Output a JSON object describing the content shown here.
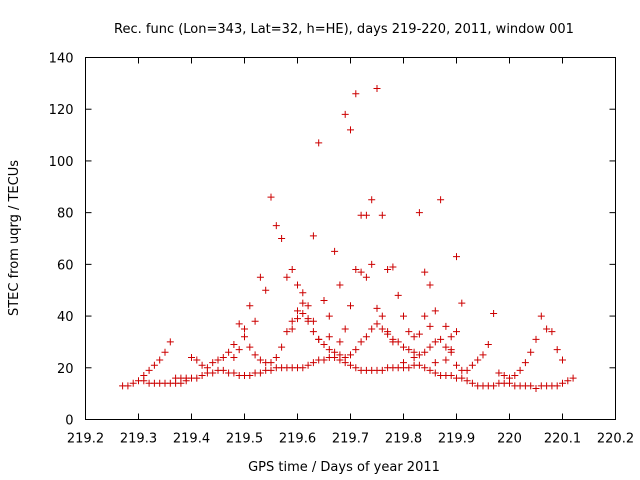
{
  "chart_data": {
    "type": "scatter",
    "title": "Rec. func (Lon=343, Lat=32, h=HE), days 219-220, 2011, window 001",
    "xlabel": "GPS time / Days of year 2011",
    "ylabel": "STEC from uqrg / TECUs",
    "xlim": [
      219.2,
      220.2
    ],
    "ylim": [
      0,
      140
    ],
    "xticks": [
      "219.2",
      "219.3",
      "219.4",
      "219.5",
      "219.6",
      "219.7",
      "219.8",
      "219.9",
      "220",
      "220.1",
      "220.2"
    ],
    "yticks": [
      "0",
      "20",
      "40",
      "60",
      "80",
      "100",
      "120",
      "140"
    ],
    "grid": false,
    "legend": "none",
    "marker": "plus",
    "color": "#cc0000",
    "series": [
      {
        "points": [
          [
            219.27,
            13
          ],
          [
            219.28,
            13
          ],
          [
            219.29,
            14
          ],
          [
            219.3,
            15
          ],
          [
            219.31,
            15
          ],
          [
            219.32,
            14
          ],
          [
            219.33,
            14
          ],
          [
            219.34,
            14
          ],
          [
            219.35,
            14
          ],
          [
            219.36,
            14
          ],
          [
            219.37,
            14
          ],
          [
            219.38,
            14
          ],
          [
            219.39,
            15
          ],
          [
            219.4,
            16
          ],
          [
            219.41,
            16
          ],
          [
            219.42,
            17
          ],
          [
            219.43,
            18
          ],
          [
            219.44,
            18
          ],
          [
            219.45,
            19
          ],
          [
            219.46,
            19
          ],
          [
            219.47,
            18
          ],
          [
            219.48,
            18
          ],
          [
            219.49,
            17
          ],
          [
            219.5,
            17
          ],
          [
            219.51,
            17
          ],
          [
            219.52,
            18
          ],
          [
            219.53,
            18
          ],
          [
            219.54,
            19
          ],
          [
            219.55,
            19
          ],
          [
            219.56,
            20
          ],
          [
            219.57,
            20
          ],
          [
            219.58,
            20
          ],
          [
            219.59,
            20
          ],
          [
            219.6,
            20
          ],
          [
            219.61,
            20
          ],
          [
            219.62,
            21
          ],
          [
            219.63,
            22
          ],
          [
            219.64,
            23
          ],
          [
            219.65,
            23
          ],
          [
            219.66,
            24
          ],
          [
            219.67,
            24
          ],
          [
            219.68,
            23
          ],
          [
            219.69,
            22
          ],
          [
            219.7,
            21
          ],
          [
            219.71,
            20
          ],
          [
            219.72,
            19
          ],
          [
            219.73,
            19
          ],
          [
            219.74,
            19
          ],
          [
            219.75,
            19
          ],
          [
            219.76,
            19
          ],
          [
            219.77,
            20
          ],
          [
            219.78,
            20
          ],
          [
            219.79,
            20
          ],
          [
            219.8,
            20
          ],
          [
            219.81,
            20
          ],
          [
            219.82,
            21
          ],
          [
            219.83,
            21
          ],
          [
            219.84,
            20
          ],
          [
            219.85,
            19
          ],
          [
            219.86,
            18
          ],
          [
            219.87,
            17
          ],
          [
            219.88,
            17
          ],
          [
            219.89,
            17
          ],
          [
            219.9,
            16
          ],
          [
            219.91,
            16
          ],
          [
            219.92,
            15
          ],
          [
            219.93,
            14
          ],
          [
            219.94,
            13
          ],
          [
            219.95,
            13
          ],
          [
            219.96,
            13
          ],
          [
            219.97,
            13
          ],
          [
            219.98,
            14
          ],
          [
            219.99,
            14
          ],
          [
            220.0,
            14
          ],
          [
            220.01,
            13
          ],
          [
            220.02,
            13
          ],
          [
            220.03,
            13
          ],
          [
            220.04,
            13
          ],
          [
            220.05,
            12
          ],
          [
            220.06,
            13
          ],
          [
            220.07,
            13
          ],
          [
            220.08,
            13
          ],
          [
            220.09,
            13
          ],
          [
            220.1,
            14
          ],
          [
            220.11,
            15
          ],
          [
            220.12,
            16
          ],
          [
            219.31,
            17
          ],
          [
            219.32,
            19
          ],
          [
            219.33,
            21
          ],
          [
            219.34,
            23
          ],
          [
            219.35,
            26
          ],
          [
            219.36,
            30
          ],
          [
            219.37,
            16
          ],
          [
            219.38,
            16
          ],
          [
            219.39,
            16
          ],
          [
            219.4,
            24
          ],
          [
            219.41,
            23
          ],
          [
            219.42,
            21
          ],
          [
            219.43,
            20
          ],
          [
            219.44,
            22
          ],
          [
            219.45,
            23
          ],
          [
            219.46,
            24
          ],
          [
            219.47,
            26
          ],
          [
            219.48,
            29
          ],
          [
            219.49,
            37
          ],
          [
            219.5,
            32
          ],
          [
            219.51,
            28
          ],
          [
            219.52,
            25
          ],
          [
            219.53,
            23
          ],
          [
            219.54,
            22
          ],
          [
            219.55,
            22
          ],
          [
            219.56,
            24
          ],
          [
            219.57,
            28
          ],
          [
            219.58,
            34
          ],
          [
            219.59,
            38
          ],
          [
            219.6,
            42
          ],
          [
            219.61,
            45
          ],
          [
            219.62,
            38
          ],
          [
            219.63,
            34
          ],
          [
            219.64,
            31
          ],
          [
            219.65,
            29
          ],
          [
            219.66,
            27
          ],
          [
            219.67,
            26
          ],
          [
            219.68,
            25
          ],
          [
            219.69,
            24
          ],
          [
            219.7,
            25
          ],
          [
            219.71,
            27
          ],
          [
            219.72,
            30
          ],
          [
            219.73,
            32
          ],
          [
            219.74,
            35
          ],
          [
            219.75,
            37
          ],
          [
            219.76,
            35
          ],
          [
            219.77,
            33
          ],
          [
            219.78,
            31
          ],
          [
            219.79,
            30
          ],
          [
            219.8,
            28
          ],
          [
            219.81,
            27
          ],
          [
            219.82,
            26
          ],
          [
            219.83,
            25
          ],
          [
            219.84,
            26
          ],
          [
            219.85,
            28
          ],
          [
            219.86,
            30
          ],
          [
            219.87,
            31
          ],
          [
            219.88,
            28
          ],
          [
            219.89,
            26
          ],
          [
            219.9,
            21
          ],
          [
            219.91,
            19
          ],
          [
            219.92,
            19
          ],
          [
            219.93,
            21
          ],
          [
            219.94,
            23
          ],
          [
            219.95,
            25
          ],
          [
            219.96,
            29
          ],
          [
            219.97,
            41
          ],
          [
            219.98,
            18
          ],
          [
            219.99,
            17
          ],
          [
            220.0,
            16
          ],
          [
            220.01,
            17
          ],
          [
            220.02,
            19
          ],
          [
            220.03,
            22
          ],
          [
            220.04,
            26
          ],
          [
            220.05,
            31
          ],
          [
            220.06,
            40
          ],
          [
            220.07,
            35
          ],
          [
            220.08,
            34
          ],
          [
            220.09,
            27
          ],
          [
            220.1,
            23
          ],
          [
            219.48,
            24
          ],
          [
            219.49,
            27
          ],
          [
            219.5,
            35
          ],
          [
            219.51,
            44
          ],
          [
            219.52,
            38
          ],
          [
            219.53,
            55
          ],
          [
            219.54,
            50
          ],
          [
            219.55,
            86
          ],
          [
            219.56,
            75
          ],
          [
            219.57,
            70
          ],
          [
            219.58,
            55
          ],
          [
            219.59,
            58
          ],
          [
            219.6,
            52
          ],
          [
            219.61,
            49
          ],
          [
            219.62,
            44
          ],
          [
            219.63,
            71
          ],
          [
            219.64,
            107
          ],
          [
            219.65,
            46
          ],
          [
            219.66,
            40
          ],
          [
            219.67,
            65
          ],
          [
            219.68,
            52
          ],
          [
            219.69,
            118
          ],
          [
            219.7,
            112
          ],
          [
            219.71,
            126
          ],
          [
            219.72,
            79
          ],
          [
            219.73,
            79
          ],
          [
            219.74,
            85
          ],
          [
            219.75,
            128
          ],
          [
            219.76,
            79
          ],
          [
            219.77,
            58
          ],
          [
            219.78,
            59
          ],
          [
            219.79,
            48
          ],
          [
            219.8,
            40
          ],
          [
            219.81,
            34
          ],
          [
            219.82,
            32
          ],
          [
            219.83,
            80
          ],
          [
            219.84,
            57
          ],
          [
            219.85,
            52
          ],
          [
            219.86,
            42
          ],
          [
            219.87,
            85
          ],
          [
            219.88,
            36
          ],
          [
            219.89,
            32
          ],
          [
            219.9,
            63
          ],
          [
            219.91,
            45
          ],
          [
            219.59,
            35
          ],
          [
            219.6,
            39
          ],
          [
            219.61,
            41
          ],
          [
            219.62,
            39
          ],
          [
            219.63,
            38
          ],
          [
            219.64,
            31
          ],
          [
            219.66,
            32
          ],
          [
            219.68,
            30
          ],
          [
            219.69,
            35
          ],
          [
            219.7,
            44
          ],
          [
            219.71,
            58
          ],
          [
            219.72,
            57
          ],
          [
            219.73,
            55
          ],
          [
            219.74,
            60
          ],
          [
            219.75,
            43
          ],
          [
            219.76,
            40
          ],
          [
            219.77,
            34
          ],
          [
            219.78,
            30
          ],
          [
            219.8,
            22
          ],
          [
            219.82,
            24
          ],
          [
            219.83,
            33
          ],
          [
            219.84,
            40
          ],
          [
            219.85,
            36
          ],
          [
            219.86,
            22
          ],
          [
            219.88,
            23
          ],
          [
            219.89,
            27
          ],
          [
            219.9,
            34
          ]
        ]
      }
    ]
  }
}
